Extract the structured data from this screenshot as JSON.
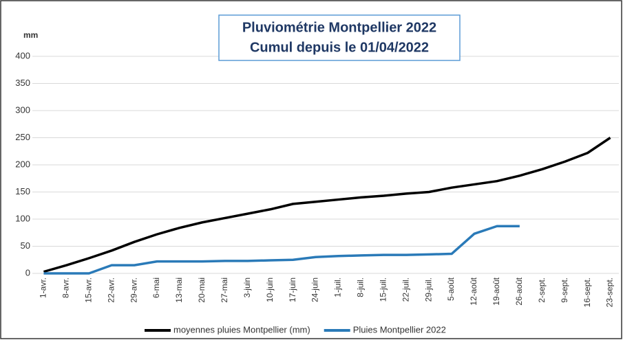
{
  "chart_data": {
    "type": "line",
    "title": "Pluviométrie Montpellier 2022",
    "subtitle": "Cumul depuis le 01/04/2022",
    "y_label": "mm",
    "categories": [
      "1-avr.",
      "8-avr.",
      "15-avr.",
      "22-avr.",
      "29-avr.",
      "6-mai",
      "13-mai",
      "20-mai",
      "27-mai",
      "3-juin",
      "10-juin",
      "17-juin",
      "24-juin",
      "1-juil.",
      "8-juil.",
      "15-juil.",
      "22-juil.",
      "29-juil.",
      "5-août",
      "12-août",
      "19-août",
      "26-août",
      "2-sept.",
      "9-sept.",
      "16-sept.",
      "23-sept."
    ],
    "series": [
      {
        "name": "moyennes pluies Montpellier (mm)",
        "color": "#000000",
        "values": [
          3,
          15,
          28,
          42,
          58,
          72,
          84,
          94,
          102,
          110,
          118,
          128,
          132,
          136,
          140,
          143,
          147,
          150,
          158,
          164,
          170,
          180,
          192,
          206,
          222,
          250
        ]
      },
      {
        "name": "Pluies Montpellier 2022",
        "color": "#2a7ab8",
        "values": [
          0,
          0,
          0,
          15,
          15,
          22,
          22,
          22,
          23,
          23,
          24,
          25,
          30,
          32,
          33,
          34,
          34,
          35,
          36,
          73,
          87,
          87,
          null,
          null,
          null,
          null
        ]
      }
    ],
    "ylim": [
      0,
      400
    ],
    "yticks": [
      0,
      50,
      100,
      150,
      200,
      250,
      300,
      350,
      400
    ],
    "grid": true
  }
}
